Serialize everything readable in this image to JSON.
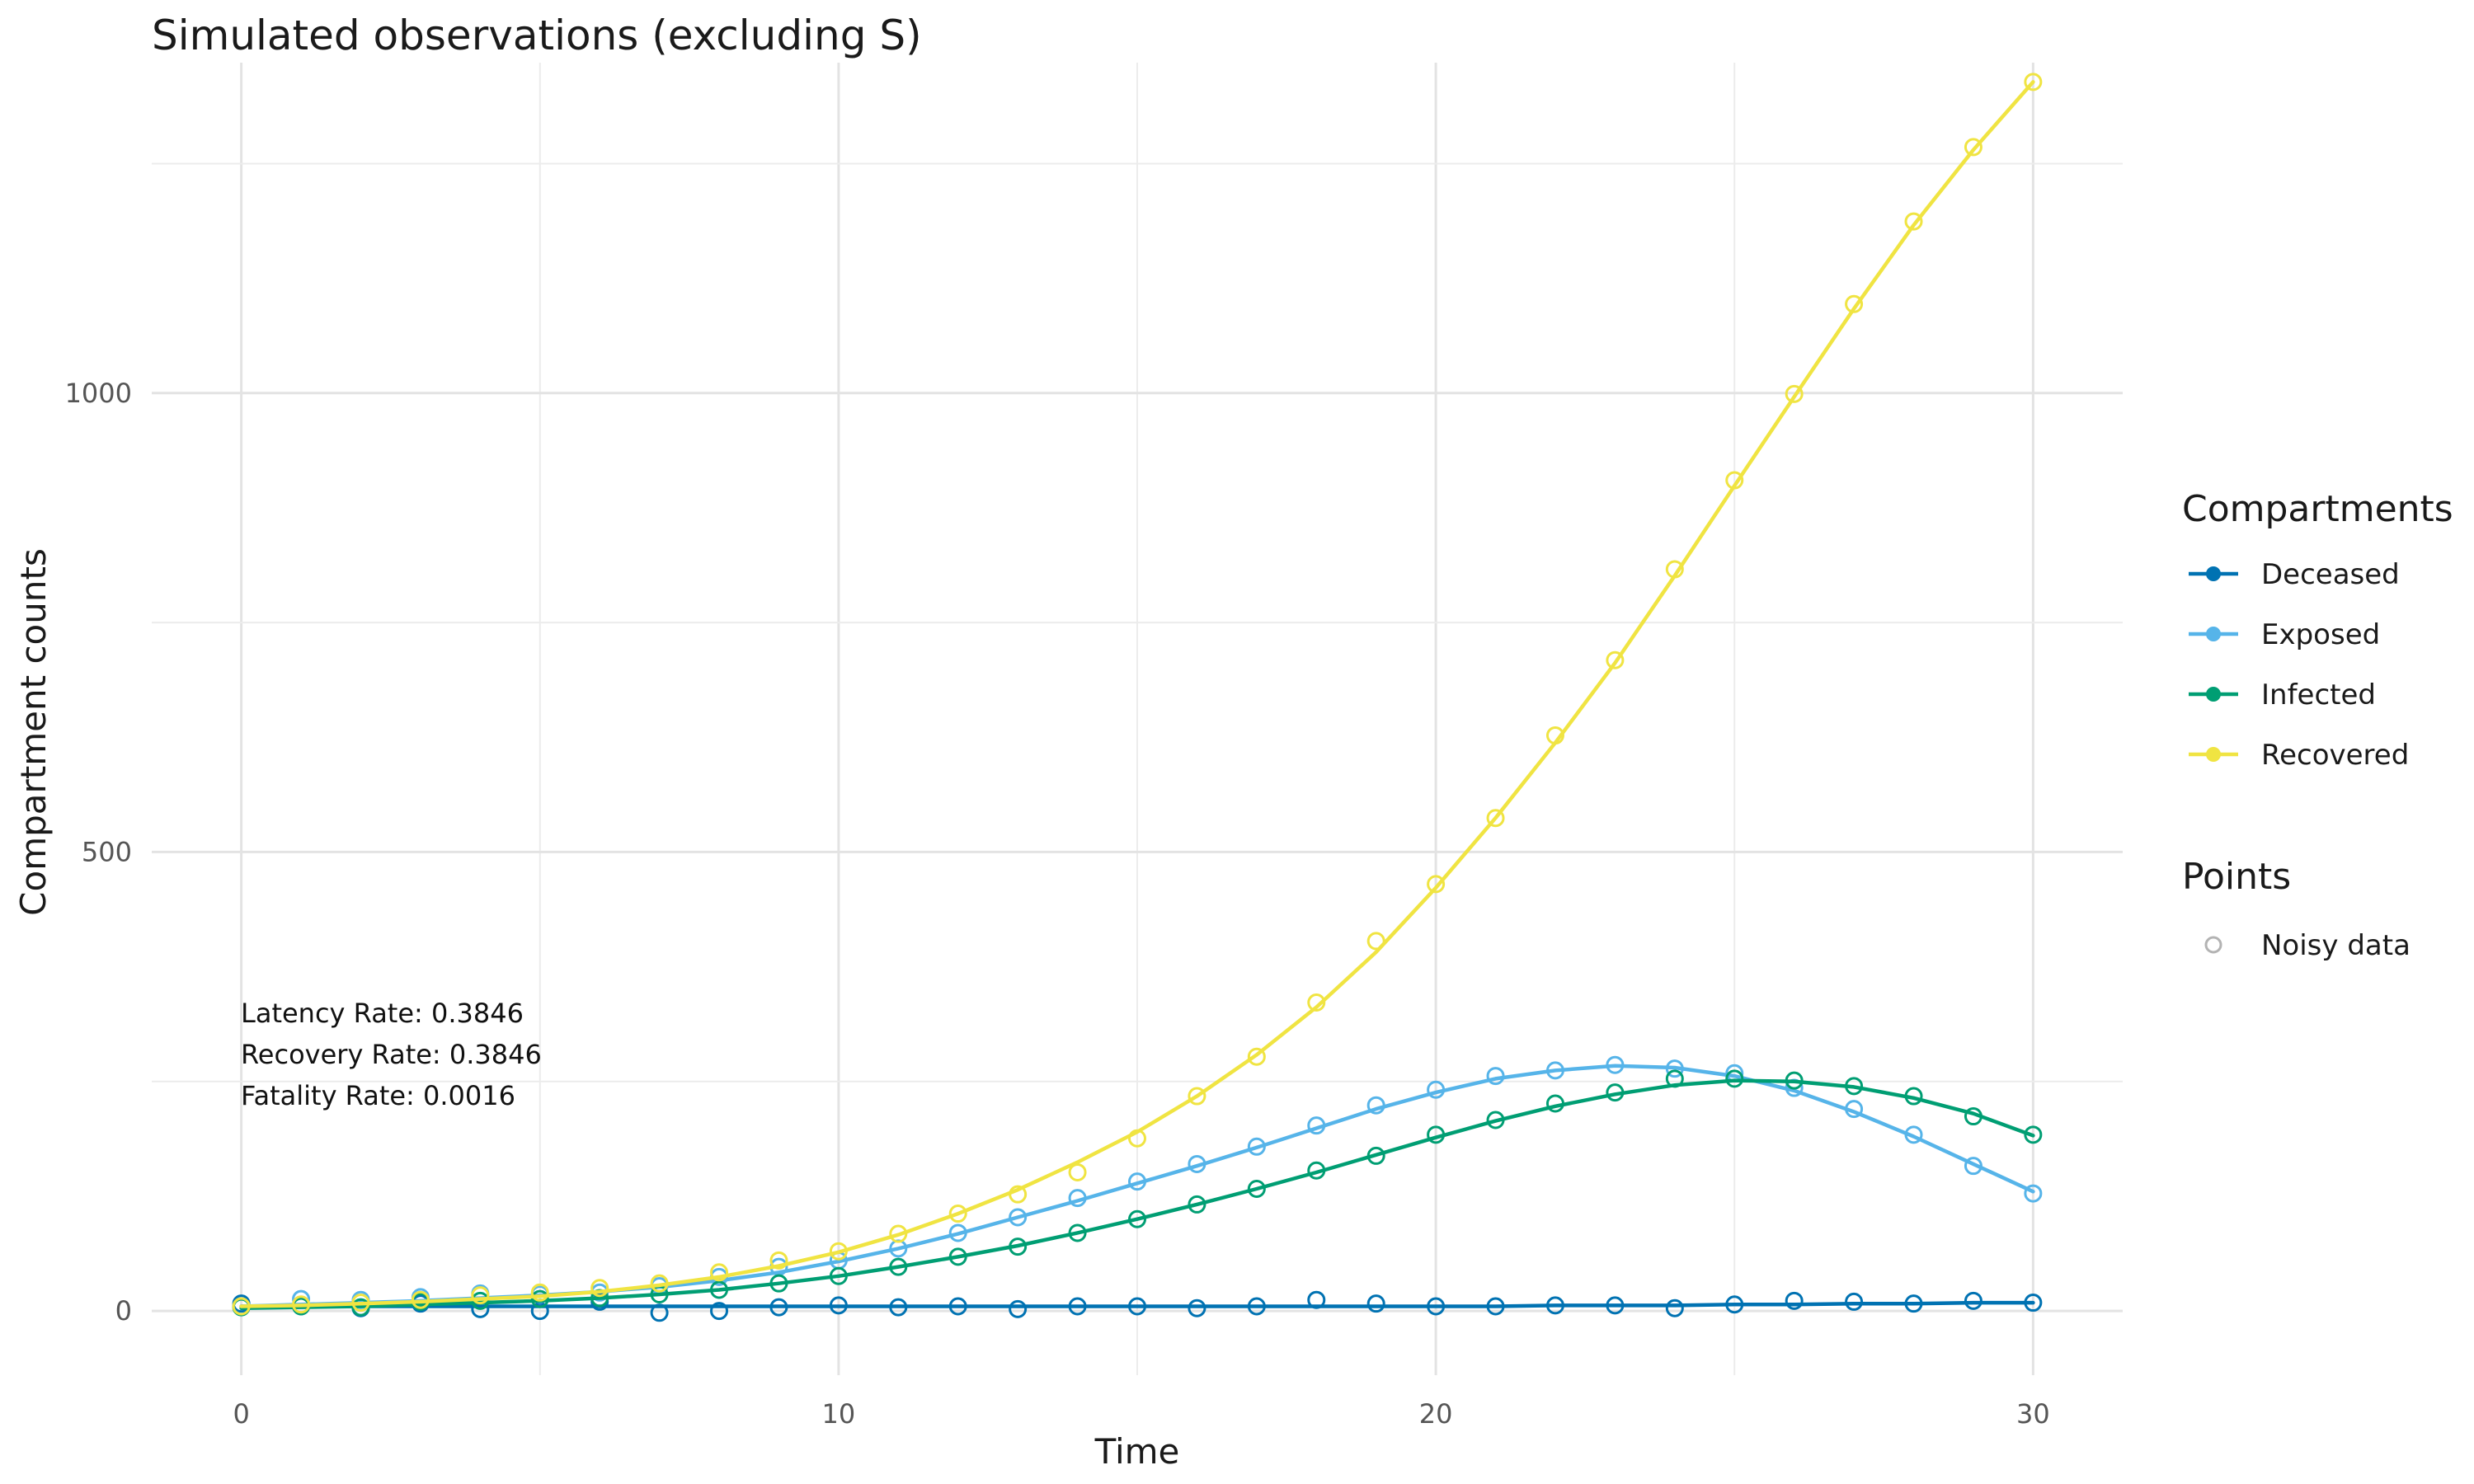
{
  "chart_data": {
    "type": "line",
    "title": "Simulated observations (excluding S)",
    "xlabel": "Time",
    "ylabel": "Compartment counts",
    "xlim": [
      -1.5,
      31.5
    ],
    "ylim": [
      -70,
      1360
    ],
    "x_ticks": [
      0,
      10,
      20,
      30
    ],
    "y_ticks": [
      0,
      500,
      1000
    ],
    "grid": true,
    "legend_position": "right",
    "legend": {
      "lines_title": "Compartments",
      "points_title": "Points",
      "points_label": "Noisy data"
    },
    "annotations": [
      "Latency Rate: 0.3846",
      "Recovery Rate: 0.3846",
      "Fatality Rate: 0.0016"
    ],
    "x": [
      0,
      1,
      2,
      3,
      4,
      5,
      6,
      7,
      8,
      9,
      10,
      11,
      12,
      13,
      14,
      15,
      16,
      17,
      18,
      19,
      20,
      21,
      22,
      23,
      24,
      25,
      26,
      27,
      28,
      29,
      30
    ],
    "series": [
      {
        "name": "Deceased",
        "color": "#0072B2",
        "line": [
          5,
          5,
          5,
          5,
          5,
          5,
          5,
          5,
          5,
          5,
          5,
          5,
          5,
          5,
          5,
          5,
          5,
          5,
          5,
          5,
          5,
          5,
          6,
          6,
          6,
          7,
          7,
          8,
          8,
          9,
          9
        ],
        "points": [
          8,
          5,
          3,
          8,
          2,
          0,
          10,
          -2,
          0,
          4,
          6,
          4,
          5,
          2,
          5,
          5,
          3,
          5,
          12,
          8,
          5,
          5,
          6,
          6,
          3,
          7,
          11,
          10,
          8,
          11,
          9
        ]
      },
      {
        "name": "Exposed",
        "color": "#56B4E9",
        "line": [
          5,
          7,
          9,
          11,
          14,
          17,
          21,
          26,
          33,
          42,
          54,
          68,
          84,
          102,
          120,
          139,
          158,
          178,
          199,
          220,
          238,
          253,
          262,
          267,
          265,
          256,
          240,
          217,
          190,
          160,
          130
        ],
        "points": [
          5,
          13,
          12,
          15,
          19,
          18,
          20,
          27,
          37,
          48,
          55,
          68,
          85,
          102,
          123,
          141,
          160,
          179,
          202,
          224,
          241,
          256,
          262,
          268,
          264,
          259,
          243,
          220,
          192,
          158,
          128
        ]
      },
      {
        "name": "Infected",
        "color": "#009E73",
        "line": [
          3,
          4,
          5,
          7,
          9,
          11,
          14,
          18,
          23,
          30,
          38,
          48,
          59,
          71,
          85,
          100,
          116,
          133,
          151,
          170,
          189,
          207,
          223,
          236,
          246,
          251,
          250,
          244,
          232,
          215,
          191
        ],
        "points": [
          4,
          5,
          4,
          10,
          11,
          13,
          14,
          18,
          23,
          30,
          38,
          48,
          59,
          70,
          85,
          100,
          116,
          133,
          153,
          169,
          192,
          208,
          226,
          238,
          253,
          253,
          251,
          245,
          234,
          212,
          192
        ]
      },
      {
        "name": "Recovered",
        "color": "#F0E442",
        "line": [
          5,
          6,
          8,
          10,
          13,
          16,
          21,
          28,
          37,
          49,
          64,
          83,
          106,
          132,
          162,
          195,
          234,
          279,
          331,
          391,
          461,
          537,
          619,
          706,
          801,
          899,
          996,
          1092,
          1183,
          1265,
          1339
        ],
        "points": [
          5,
          7,
          9,
          12,
          17,
          20,
          25,
          30,
          42,
          55,
          65,
          84,
          106,
          127,
          151,
          188,
          234,
          277,
          336,
          403,
          465,
          537,
          627,
          709,
          808,
          905,
          999,
          1097,
          1187,
          1268,
          1339
        ]
      }
    ]
  }
}
